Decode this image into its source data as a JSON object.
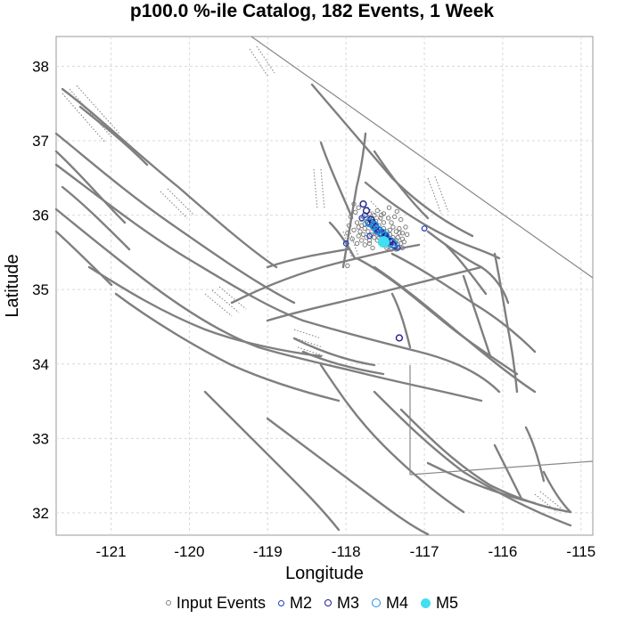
{
  "chart_data": {
    "type": "scatter",
    "title": "p100.0 %-ile Catalog, 182 Events, 1 Week",
    "xlabel": "Longitude",
    "ylabel": "Latitude",
    "xlim": [
      -121.7,
      -114.85
    ],
    "ylim": [
      31.7,
      38.4
    ],
    "xticks": [
      "-121",
      "-120",
      "-119",
      "-118",
      "-117",
      "-116",
      "-115"
    ],
    "yticks": [
      "32",
      "33",
      "34",
      "35",
      "36",
      "37",
      "38"
    ],
    "grid": true,
    "legend": {
      "placement": "bottom",
      "entries": [
        "Input Events",
        "M2",
        "M3",
        "M4",
        "M5"
      ]
    },
    "series": [
      {
        "name": "Input Events",
        "color": "#7f7f7f",
        "points": [
          [
            -117.78,
            35.98
          ],
          [
            -117.7,
            35.9
          ],
          [
            -117.65,
            35.84
          ],
          [
            -117.6,
            35.8
          ],
          [
            -117.55,
            35.75
          ],
          [
            -117.5,
            35.72
          ],
          [
            -117.46,
            35.68
          ],
          [
            -117.42,
            35.64
          ],
          [
            -117.38,
            35.62
          ],
          [
            -117.7,
            35.96
          ],
          [
            -117.74,
            35.92
          ],
          [
            -117.66,
            35.94
          ],
          [
            -117.62,
            35.88
          ],
          [
            -117.58,
            35.86
          ],
          [
            -117.52,
            35.82
          ],
          [
            -117.48,
            35.78
          ],
          [
            -117.44,
            35.74
          ],
          [
            -117.4,
            35.7
          ],
          [
            -117.36,
            35.66
          ],
          [
            -117.34,
            35.6
          ],
          [
            -117.8,
            35.86
          ],
          [
            -117.76,
            35.82
          ],
          [
            -117.72,
            35.78
          ],
          [
            -117.68,
            35.74
          ],
          [
            -117.64,
            35.7
          ],
          [
            -117.6,
            35.66
          ],
          [
            -117.56,
            35.62
          ],
          [
            -117.52,
            35.6
          ],
          [
            -117.48,
            35.56
          ],
          [
            -117.3,
            35.62
          ],
          [
            -117.28,
            35.68
          ],
          [
            -117.32,
            35.76
          ],
          [
            -117.56,
            35.96
          ],
          [
            -117.52,
            35.9
          ],
          [
            -117.86,
            35.9
          ],
          [
            -117.9,
            35.8
          ],
          [
            -117.84,
            35.72
          ],
          [
            -117.8,
            35.66
          ],
          [
            -117.28,
            35.56
          ],
          [
            -117.36,
            35.54
          ],
          [
            -117.9,
            36.15
          ],
          [
            -117.84,
            36.1
          ],
          [
            -117.88,
            36.04
          ],
          [
            -117.94,
            35.98
          ],
          [
            -117.6,
            36.06
          ],
          [
            -117.52,
            36.02
          ],
          [
            -117.46,
            35.96
          ],
          [
            -117.42,
            35.9
          ],
          [
            -117.22,
            35.74
          ],
          [
            -117.24,
            35.84
          ],
          [
            -117.3,
            35.94
          ],
          [
            -117.38,
            35.98
          ],
          [
            -117.7,
            35.62
          ],
          [
            -117.66,
            35.56
          ],
          [
            -117.76,
            35.6
          ],
          [
            -117.82,
            35.78
          ],
          [
            -117.96,
            35.86
          ],
          [
            -117.98,
            35.76
          ],
          [
            -117.92,
            35.68
          ],
          [
            -117.86,
            35.62
          ],
          [
            -117.46,
            35.58
          ],
          [
            -117.42,
            35.54
          ],
          [
            -117.7,
            36.02
          ],
          [
            -117.64,
            36.0
          ],
          [
            -117.56,
            35.78
          ],
          [
            -117.5,
            35.74
          ],
          [
            -117.44,
            35.8
          ],
          [
            -117.4,
            35.84
          ],
          [
            -117.34,
            35.7
          ],
          [
            -117.26,
            35.64
          ],
          [
            -117.62,
            35.92
          ],
          [
            -117.58,
            35.7
          ],
          [
            -117.54,
            35.68
          ],
          [
            -117.5,
            35.64
          ],
          [
            -117.74,
            35.7
          ],
          [
            -117.7,
            35.66
          ],
          [
            -117.78,
            35.74
          ],
          [
            -117.66,
            35.82
          ],
          [
            -117.62,
            35.76
          ],
          [
            -117.68,
            35.86
          ],
          [
            -117.8,
            35.94
          ],
          [
            -117.76,
            35.88
          ],
          [
            -117.84,
            35.84
          ],
          [
            -117.36,
            35.78
          ],
          [
            -117.32,
            35.82
          ],
          [
            -117.28,
            35.76
          ],
          [
            -117.45,
            36.1
          ],
          [
            -117.35,
            36.05
          ],
          [
            -117.98,
            35.32
          ],
          [
            -117.55,
            36.0
          ]
        ]
      },
      {
        "name": "M2",
        "color": "#1f3fbf",
        "points": [
          [
            -118.0,
            35.62
          ],
          [
            -117.0,
            35.82
          ],
          [
            -117.72,
            35.9
          ],
          [
            -117.6,
            35.78
          ],
          [
            -117.5,
            35.7
          ],
          [
            -117.42,
            35.66
          ],
          [
            -117.38,
            35.58
          ],
          [
            -117.66,
            35.86
          ],
          [
            -117.56,
            35.74
          ],
          [
            -117.46,
            35.62
          ],
          [
            -117.34,
            35.56
          ],
          [
            -117.8,
            35.96
          ],
          [
            -117.7,
            35.72
          ],
          [
            -117.62,
            35.8
          ],
          [
            -117.54,
            35.66
          ],
          [
            -117.76,
            36.0
          ]
        ]
      },
      {
        "name": "M3",
        "color": "#22208f",
        "points": [
          [
            -117.78,
            36.15
          ],
          [
            -117.74,
            36.06
          ],
          [
            -117.68,
            35.94
          ],
          [
            -117.62,
            35.84
          ],
          [
            -117.55,
            35.76
          ],
          [
            -117.48,
            35.68
          ],
          [
            -117.4,
            35.6
          ],
          [
            -117.32,
            34.35
          ],
          [
            -117.66,
            35.9
          ],
          [
            -117.58,
            35.8
          ],
          [
            -117.5,
            35.72
          ],
          [
            -117.44,
            35.64
          ]
        ]
      },
      {
        "name": "M4",
        "color": "#1e90e0",
        "points": [
          [
            -117.7,
            35.9
          ],
          [
            -117.6,
            35.8
          ],
          [
            -117.5,
            35.72
          ],
          [
            -117.4,
            35.62
          ],
          [
            -117.64,
            35.86
          ],
          [
            -117.54,
            35.76
          ]
        ]
      },
      {
        "name": "M5",
        "color": "#40e0f0",
        "points": [
          [
            -117.52,
            35.64
          ]
        ]
      }
    ]
  },
  "colors": {
    "fault": "#7f7f7f",
    "grid": "#d9d9d9",
    "frame": "#999999"
  }
}
